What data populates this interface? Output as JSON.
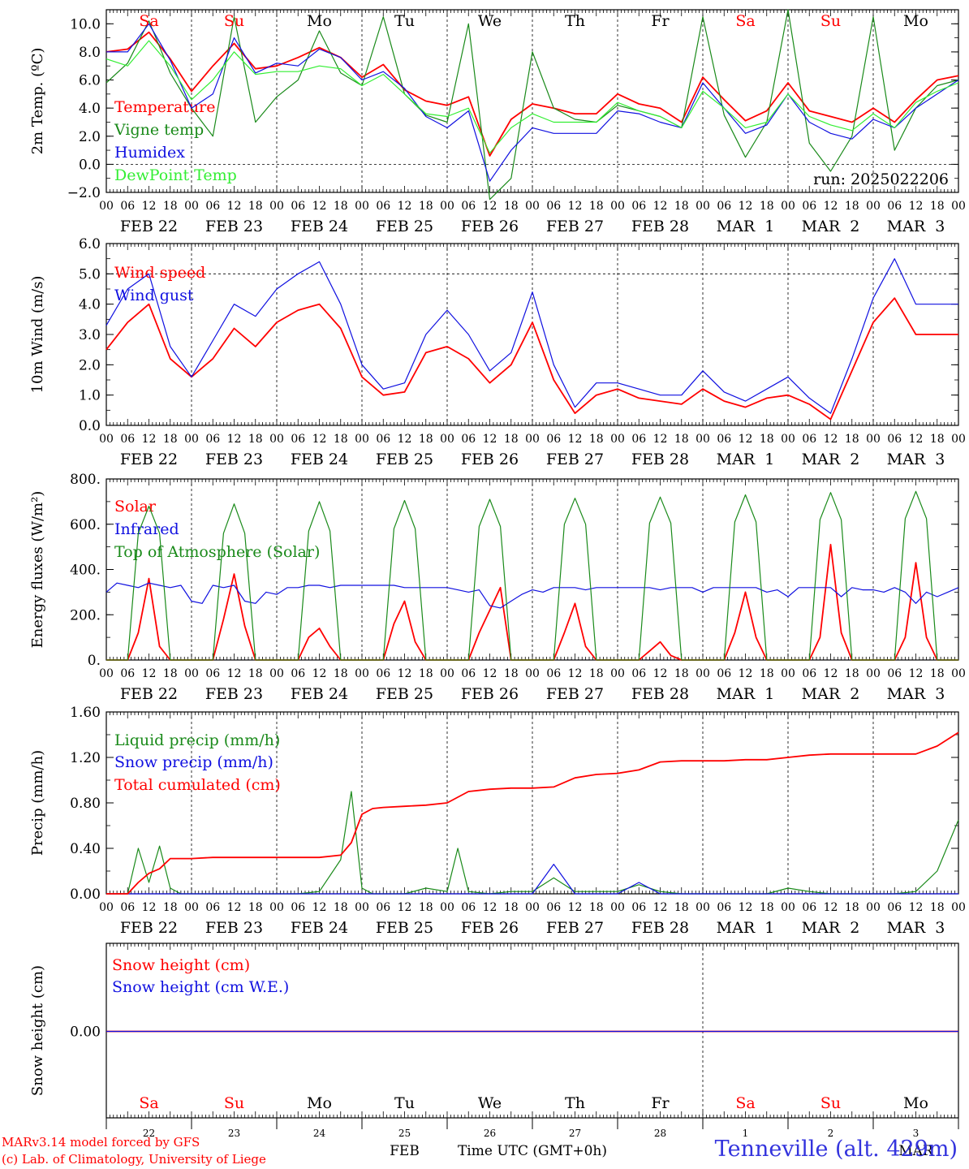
{
  "run_label": "run: 2025022206",
  "credit_line1": "MARv3.14 model forced by GFS",
  "credit_line2": "(c) Lab. of Climatology, University of Liege",
  "station_label": "Tenneville (alt. 429m)",
  "x_axis_label": "Time UTC (GMT+0h)",
  "hour_ticks": [
    "00",
    "06",
    "12",
    "18"
  ],
  "date_labels": [
    "FEB 22",
    "FEB 23",
    "FEB 24",
    "FEB 25",
    "FEB 26",
    "FEB 27",
    "FEB 28",
    "MAR  1",
    "MAR  2",
    "MAR  3"
  ],
  "day_names": [
    "Sa",
    "Su",
    "Mo",
    "Tu",
    "We",
    "Th",
    "Fr",
    "Sa",
    "Su",
    "Mo"
  ],
  "day_numbers": [
    "22",
    "23",
    "24",
    "25",
    "26",
    "27",
    "28",
    "1",
    "2",
    "3"
  ],
  "bottom_month_labels": [
    "FEB",
    "MAR"
  ],
  "colors": {
    "red": "#ff0000",
    "green": "#1a8a1a",
    "blue": "#1010e0",
    "lightgreen": "#33ee33",
    "weekend": "#ff0000",
    "weekday": "#000000"
  },
  "chart_data": [
    {
      "type": "line",
      "ylabel": "2m Temp. (ºC)",
      "ylim": [
        -2,
        11
      ],
      "yticks": [
        "10.0",
        "8.0",
        "6.0",
        "4.0",
        "2.0",
        "0.0",
        "−2.0"
      ],
      "ytick_values": [
        10,
        8,
        6,
        4,
        2,
        0,
        -2
      ],
      "ref_line": 0,
      "x_hours": [
        0,
        6,
        12,
        18,
        24,
        30,
        36,
        42,
        48,
        54,
        60,
        66,
        72,
        78,
        84,
        90,
        96,
        102,
        108,
        114,
        120,
        126,
        132,
        138,
        144,
        150,
        156,
        162,
        168,
        174,
        180,
        186,
        192,
        198,
        204,
        210,
        216,
        222,
        228,
        234,
        240
      ],
      "series": [
        {
          "name": "Temperature",
          "color": "red",
          "values": [
            8.0,
            8.2,
            9.4,
            7.5,
            5.2,
            7.0,
            8.6,
            6.8,
            7.0,
            7.6,
            8.3,
            7.6,
            6.2,
            7.1,
            5.3,
            4.5,
            4.2,
            4.8,
            0.6,
            3.2,
            4.3,
            4.0,
            3.6,
            3.6,
            5.0,
            4.3,
            4.0,
            3.0,
            6.2,
            4.6,
            3.1,
            3.8,
            5.8,
            3.8,
            3.4,
            3.0,
            4.0,
            3.0,
            4.6,
            6.0,
            6.3
          ]
        },
        {
          "name": "Vigne temp",
          "color": "green",
          "values": [
            5.8,
            7.2,
            10.2,
            6.5,
            4.0,
            2.0,
            10.5,
            3.0,
            4.8,
            6.0,
            9.5,
            6.5,
            5.6,
            10.5,
            5.0,
            3.5,
            3.0,
            10.0,
            -2.5,
            -1.0,
            8.0,
            4.0,
            3.2,
            3.0,
            4.2,
            3.8,
            3.4,
            2.6,
            10.5,
            3.5,
            0.5,
            3.0,
            11.0,
            1.5,
            -0.5,
            2.0,
            10.5,
            1.0,
            4.0,
            5.6,
            6.0
          ]
        },
        {
          "name": "Humidex",
          "color": "blue",
          "values": [
            8.0,
            8.0,
            10.0,
            7.4,
            4.0,
            5.0,
            9.0,
            6.5,
            7.2,
            7.0,
            8.2,
            7.6,
            6.0,
            6.6,
            5.4,
            3.4,
            2.6,
            3.8,
            -1.2,
            1.0,
            2.6,
            2.2,
            2.2,
            2.2,
            3.8,
            3.6,
            3.0,
            2.6,
            5.8,
            4.0,
            2.2,
            2.8,
            5.0,
            3.0,
            2.2,
            1.8,
            3.2,
            2.6,
            4.0,
            5.0,
            6.0
          ]
        },
        {
          "name": "DewPoint Temp",
          "color": "lightgreen",
          "values": [
            7.5,
            7.0,
            8.8,
            7.0,
            4.6,
            6.0,
            8.0,
            6.4,
            6.6,
            6.6,
            7.0,
            6.8,
            5.6,
            6.4,
            5.0,
            3.6,
            3.4,
            4.0,
            0.8,
            2.6,
            3.6,
            3.0,
            3.0,
            3.0,
            4.4,
            3.8,
            3.4,
            2.6,
            5.2,
            4.0,
            2.6,
            3.0,
            5.0,
            3.4,
            2.8,
            2.4,
            3.6,
            2.6,
            4.4,
            5.2,
            5.8
          ]
        }
      ]
    },
    {
      "type": "line",
      "ylabel": "10m Wind (m/s)",
      "ylim": [
        0,
        6
      ],
      "yticks": [
        "6.0",
        "5.0",
        "4.0",
        "3.0",
        "2.0",
        "1.0",
        "0.0"
      ],
      "ytick_values": [
        6,
        5,
        4,
        3,
        2,
        1,
        0
      ],
      "ref_line": 5,
      "x_hours": [
        0,
        6,
        12,
        18,
        24,
        30,
        36,
        42,
        48,
        54,
        60,
        66,
        72,
        78,
        84,
        90,
        96,
        102,
        108,
        114,
        120,
        126,
        132,
        138,
        144,
        150,
        156,
        162,
        168,
        174,
        180,
        186,
        192,
        198,
        204,
        210,
        216,
        222,
        228,
        234,
        240
      ],
      "series": [
        {
          "name": "Wind speed",
          "color": "red",
          "values": [
            2.5,
            3.4,
            4.0,
            2.2,
            1.6,
            2.2,
            3.2,
            2.6,
            3.4,
            3.8,
            4.0,
            3.2,
            1.6,
            1.0,
            1.1,
            2.4,
            2.6,
            2.2,
            1.4,
            2.0,
            3.4,
            1.5,
            0.4,
            1.0,
            1.2,
            0.9,
            0.8,
            0.7,
            1.2,
            0.8,
            0.6,
            0.9,
            1.0,
            0.7,
            0.2,
            1.8,
            3.4,
            4.2,
            3.0,
            3.0,
            3.0
          ]
        },
        {
          "name": "Wind gust",
          "color": "blue",
          "values": [
            3.3,
            4.5,
            5.0,
            2.6,
            1.6,
            2.8,
            4.0,
            3.6,
            4.5,
            5.0,
            5.4,
            4.0,
            2.0,
            1.2,
            1.4,
            3.0,
            3.8,
            3.0,
            1.8,
            2.4,
            4.4,
            2.0,
            0.6,
            1.4,
            1.4,
            1.2,
            1.0,
            1.0,
            1.8,
            1.1,
            0.8,
            1.2,
            1.6,
            0.9,
            0.4,
            2.2,
            4.2,
            5.5,
            4.0,
            4.0,
            4.0
          ]
        }
      ]
    },
    {
      "type": "line",
      "ylabel": "Energy fluxes (W/m²)",
      "ylim": [
        0,
        800
      ],
      "yticks": [
        "800.",
        "600.",
        "400.",
        "200.",
        "0."
      ],
      "ytick_values": [
        800,
        600,
        400,
        200,
        0
      ],
      "x_hours": [
        0,
        3,
        6,
        9,
        12,
        15,
        18,
        21,
        24,
        27,
        30,
        33,
        36,
        39,
        42,
        45,
        48,
        51,
        54,
        57,
        60,
        63,
        66,
        69,
        72,
        75,
        78,
        81,
        84,
        87,
        90,
        93,
        96,
        99,
        102,
        105,
        108,
        111,
        114,
        117,
        120,
        123,
        126,
        129,
        132,
        135,
        138,
        141,
        144,
        147,
        150,
        153,
        156,
        159,
        162,
        165,
        168,
        171,
        174,
        177,
        180,
        183,
        186,
        189,
        192,
        195,
        198,
        201,
        204,
        207,
        210,
        213,
        216,
        219,
        222,
        225,
        228,
        231,
        234,
        237,
        240
      ],
      "series": [
        {
          "name": "Solar",
          "color": "red",
          "values": [
            0,
            0,
            0,
            120,
            360,
            60,
            0,
            0,
            0,
            0,
            0,
            180,
            380,
            150,
            0,
            0,
            0,
            0,
            0,
            100,
            140,
            60,
            0,
            0,
            0,
            0,
            0,
            160,
            260,
            80,
            0,
            0,
            0,
            0,
            0,
            120,
            220,
            320,
            0,
            0,
            0,
            0,
            0,
            120,
            250,
            60,
            0,
            0,
            0,
            0,
            0,
            40,
            80,
            20,
            0,
            0,
            0,
            0,
            0,
            120,
            300,
            100,
            0,
            0,
            0,
            0,
            0,
            100,
            510,
            120,
            0,
            0,
            0,
            0,
            0,
            100,
            430,
            100,
            0,
            0,
            0
          ]
        },
        {
          "name": "Infrared",
          "color": "blue",
          "values": [
            300,
            340,
            330,
            320,
            340,
            330,
            320,
            330,
            260,
            250,
            330,
            320,
            330,
            260,
            250,
            300,
            290,
            320,
            320,
            330,
            330,
            320,
            330,
            330,
            330,
            330,
            330,
            330,
            320,
            320,
            320,
            320,
            320,
            310,
            300,
            310,
            240,
            230,
            260,
            290,
            310,
            300,
            320,
            320,
            320,
            310,
            320,
            320,
            320,
            320,
            320,
            320,
            310,
            320,
            320,
            320,
            300,
            320,
            320,
            320,
            320,
            320,
            300,
            310,
            280,
            320,
            320,
            320,
            320,
            280,
            320,
            310,
            310,
            300,
            320,
            300,
            250,
            300,
            280,
            300,
            320
          ]
        },
        {
          "name": "Top of Atmosphere (Solar)",
          "color": "green",
          "values": [
            0,
            0,
            0,
            560,
            680,
            560,
            0,
            0,
            0,
            0,
            0,
            560,
            690,
            560,
            0,
            0,
            0,
            0,
            0,
            570,
            700,
            570,
            0,
            0,
            0,
            0,
            0,
            580,
            705,
            580,
            0,
            0,
            0,
            0,
            0,
            590,
            710,
            590,
            0,
            0,
            0,
            0,
            0,
            600,
            715,
            600,
            0,
            0,
            0,
            0,
            0,
            605,
            720,
            605,
            0,
            0,
            0,
            0,
            0,
            610,
            730,
            610,
            0,
            0,
            0,
            0,
            0,
            620,
            740,
            620,
            0,
            0,
            0,
            0,
            0,
            625,
            745,
            625,
            0,
            0,
            0
          ]
        }
      ]
    },
    {
      "type": "line",
      "ylabel": "Precip (mm/h)",
      "ylim": [
        0,
        1.6
      ],
      "yticks": [
        "1.60",
        "1.20",
        "0.80",
        "0.40",
        "0.00"
      ],
      "ytick_values": [
        1.6,
        1.2,
        0.8,
        0.4,
        0
      ],
      "x_hours": [
        0,
        6,
        9,
        12,
        15,
        18,
        21,
        24,
        30,
        36,
        42,
        48,
        54,
        60,
        66,
        69,
        72,
        75,
        78,
        84,
        90,
        96,
        99,
        102,
        108,
        114,
        120,
        126,
        132,
        138,
        144,
        150,
        156,
        162,
        168,
        174,
        180,
        186,
        192,
        198,
        204,
        210,
        216,
        222,
        228,
        234,
        240
      ],
      "series": [
        {
          "name": "Liquid precip (mm/h)",
          "color": "green",
          "values": [
            0,
            0,
            0.4,
            0.1,
            0.42,
            0.05,
            0,
            0,
            0,
            0,
            0,
            0,
            0,
            0.02,
            0.3,
            0.9,
            0.05,
            0,
            0,
            0,
            0.05,
            0.02,
            0.4,
            0.02,
            0,
            0.02,
            0.02,
            0.14,
            0.02,
            0.02,
            0.02,
            0.08,
            0.02,
            0,
            0,
            0,
            0,
            0,
            0.05,
            0.02,
            0,
            0,
            0,
            0,
            0.02,
            0.2,
            0.65
          ]
        },
        {
          "name": "Snow precip (mm/h)",
          "color": "blue",
          "values": [
            0,
            0,
            0,
            0,
            0,
            0,
            0,
            0,
            0,
            0,
            0,
            0,
            0,
            0,
            0,
            0,
            0,
            0,
            0,
            0,
            0,
            0,
            0,
            0,
            0,
            0,
            0,
            0.26,
            0,
            0,
            0,
            0.1,
            0,
            0,
            0,
            0,
            0,
            0,
            0,
            0,
            0,
            0,
            0,
            0,
            0,
            0,
            0
          ]
        },
        {
          "name": "Total cumulated (cm)",
          "color": "red",
          "values": [
            0,
            0,
            0.1,
            0.18,
            0.22,
            0.31,
            0.31,
            0.31,
            0.32,
            0.32,
            0.32,
            0.32,
            0.32,
            0.32,
            0.34,
            0.45,
            0.7,
            0.75,
            0.76,
            0.77,
            0.78,
            0.8,
            0.85,
            0.9,
            0.92,
            0.93,
            0.93,
            0.94,
            1.02,
            1.05,
            1.06,
            1.09,
            1.16,
            1.17,
            1.17,
            1.17,
            1.18,
            1.18,
            1.2,
            1.22,
            1.23,
            1.23,
            1.23,
            1.23,
            1.23,
            1.3,
            1.42
          ]
        }
      ]
    },
    {
      "type": "line",
      "ylabel": "Snow height (cm)",
      "yticks": [
        "0.00"
      ],
      "ytick_values": [
        0
      ],
      "x_hours": [
        0,
        240
      ],
      "series": [
        {
          "name": "Snow height (cm)",
          "color": "red",
          "values": [
            0,
            0
          ]
        },
        {
          "name": "Snow height (cm W.E.)",
          "color": "blue",
          "values": [
            0,
            0
          ]
        }
      ]
    }
  ]
}
